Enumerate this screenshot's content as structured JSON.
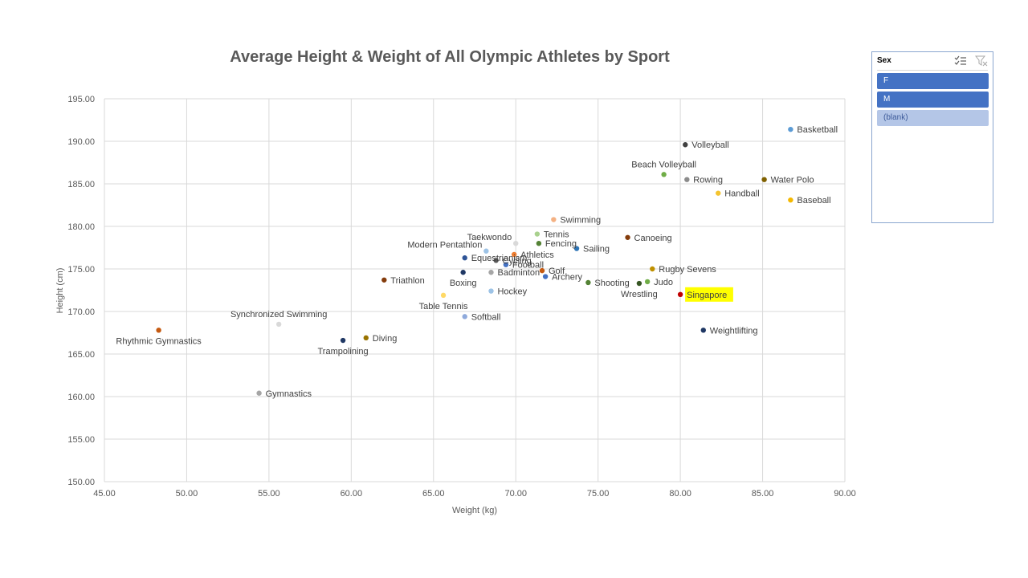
{
  "chart_data": {
    "type": "scatter",
    "title": "Average Height & Weight of All Olympic Athletes by Sport",
    "xlabel": "Weight (kg)",
    "ylabel": "Height (cm)",
    "xlim": [
      45,
      90
    ],
    "ylim": [
      150,
      195
    ],
    "xticks": [
      "45.00",
      "50.00",
      "55.00",
      "60.00",
      "65.00",
      "70.00",
      "75.00",
      "80.00",
      "85.00",
      "90.00"
    ],
    "yticks": [
      "150.00",
      "155.00",
      "160.00",
      "165.00",
      "170.00",
      "175.00",
      "180.00",
      "185.00",
      "190.00",
      "195.00"
    ],
    "grid": true,
    "points": [
      {
        "label": "Basketball",
        "x": 86.7,
        "y": 191.4,
        "color": "#5b9bd5",
        "label_pos": "right"
      },
      {
        "label": "Volleyball",
        "x": 80.3,
        "y": 189.6,
        "color": "#404040",
        "label_pos": "right"
      },
      {
        "label": "Beach Volleyball",
        "x": 79.0,
        "y": 186.1,
        "color": "#70ad47",
        "label_pos": "above"
      },
      {
        "label": "Rowing",
        "x": 80.4,
        "y": 185.5,
        "color": "#8c8c8c",
        "label_pos": "right"
      },
      {
        "label": "Water Polo",
        "x": 85.1,
        "y": 185.5,
        "color": "#7f6000",
        "label_pos": "right"
      },
      {
        "label": "Handball",
        "x": 82.3,
        "y": 183.9,
        "color": "#f4c430",
        "label_pos": "right"
      },
      {
        "label": "Baseball",
        "x": 86.7,
        "y": 183.1,
        "color": "#f4b800",
        "label_pos": "right"
      },
      {
        "label": "Swimming",
        "x": 72.3,
        "y": 180.8,
        "color": "#f4b183",
        "label_pos": "right"
      },
      {
        "label": "Tennis",
        "x": 71.3,
        "y": 179.1,
        "color": "#a9d18e",
        "label_pos": "right"
      },
      {
        "label": "Canoeing",
        "x": 76.8,
        "y": 178.7,
        "color": "#843c0c",
        "label_pos": "right"
      },
      {
        "label": "Fencing",
        "x": 71.4,
        "y": 178.0,
        "color": "#548235",
        "label_pos": "right"
      },
      {
        "label": "Taekwondo",
        "x": 70.0,
        "y": 178.0,
        "color": "#d9d9d9",
        "label_pos": "left"
      },
      {
        "label": "Sailing",
        "x": 73.7,
        "y": 177.4,
        "color": "#2e75b6",
        "label_pos": "right"
      },
      {
        "label": "Modern Pentathlon",
        "x": 68.2,
        "y": 177.1,
        "color": "#9dc3e6",
        "label_pos": "left"
      },
      {
        "label": "Athletics",
        "x": 69.9,
        "y": 176.7,
        "color": "#ed7d31",
        "label_pos": "right"
      },
      {
        "label": "Equestrianism",
        "x": 66.9,
        "y": 176.3,
        "color": "#2f5597",
        "label_pos": "right"
      },
      {
        "label": "Cycling",
        "x": 68.8,
        "y": 176.0,
        "color": "#595959",
        "label_pos": "right"
      },
      {
        "label": "Football",
        "x": 69.4,
        "y": 175.5,
        "color": "#4472c4",
        "label_pos": "right"
      },
      {
        "label": "Rugby Sevens",
        "x": 78.3,
        "y": 175.0,
        "color": "#bf9000",
        "label_pos": "right"
      },
      {
        "label": "Golf",
        "x": 71.6,
        "y": 174.8,
        "color": "#c55a11",
        "label_pos": "right"
      },
      {
        "label": "Badminton",
        "x": 68.5,
        "y": 174.6,
        "color": "#a6a6a6",
        "label_pos": "right"
      },
      {
        "label": "Boxing",
        "x": 66.8,
        "y": 174.6,
        "color": "#1f3864",
        "label_pos": "below"
      },
      {
        "label": "Archery",
        "x": 71.8,
        "y": 174.1,
        "color": "#4472c4",
        "label_pos": "right"
      },
      {
        "label": "Triathlon",
        "x": 62.0,
        "y": 173.7,
        "color": "#843c0c",
        "label_pos": "right"
      },
      {
        "label": "Shooting",
        "x": 74.4,
        "y": 173.4,
        "color": "#548235",
        "label_pos": "right"
      },
      {
        "label": "Judo",
        "x": 78.0,
        "y": 173.5,
        "color": "#70ad47",
        "label_pos": "right"
      },
      {
        "label": "Wrestling",
        "x": 77.5,
        "y": 173.3,
        "color": "#375623",
        "label_pos": "below"
      },
      {
        "label": "Hockey",
        "x": 68.5,
        "y": 172.4,
        "color": "#9dc3e6",
        "label_pos": "right"
      },
      {
        "label": "Singapore",
        "x": 80.0,
        "y": 172.0,
        "color": "#c00000",
        "label_pos": "right",
        "highlight": "#ffff00"
      },
      {
        "label": "Table Tennis",
        "x": 65.6,
        "y": 171.9,
        "color": "#ffd966",
        "label_pos": "below"
      },
      {
        "label": "Softball",
        "x": 66.9,
        "y": 169.4,
        "color": "#8faadc",
        "label_pos": "right"
      },
      {
        "label": "Synchronized Swimming",
        "x": 55.6,
        "y": 168.5,
        "color": "#d9d9d9",
        "label_pos": "above"
      },
      {
        "label": "Weightlifting",
        "x": 81.4,
        "y": 167.8,
        "color": "#1f3864",
        "label_pos": "right"
      },
      {
        "label": "Rhythmic Gymnastics",
        "x": 48.3,
        "y": 167.8,
        "color": "#c55a11",
        "label_pos": "below"
      },
      {
        "label": "Diving",
        "x": 60.9,
        "y": 166.9,
        "color": "#997300",
        "label_pos": "right"
      },
      {
        "label": "Trampolining",
        "x": 59.5,
        "y": 166.6,
        "color": "#203864",
        "label_pos": "below"
      },
      {
        "label": "Gymnastics",
        "x": 54.4,
        "y": 160.4,
        "color": "#a5a5a5",
        "label_pos": "right"
      }
    ]
  },
  "slicer": {
    "title": "Sex",
    "multiselect_icon": "multiselect-icon",
    "clear_filter_icon": "clear-filter-icon",
    "items": [
      {
        "label": "F",
        "state": "selected"
      },
      {
        "label": "M",
        "state": "selected"
      },
      {
        "label": "(blank)",
        "state": "no-data"
      }
    ]
  }
}
